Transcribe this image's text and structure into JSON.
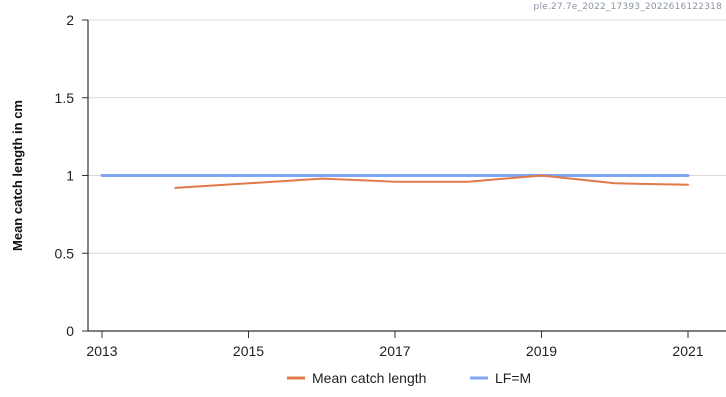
{
  "watermark": "ple.27.7e_2022_17393_2022616122318",
  "chart_data": {
    "type": "line",
    "title": "",
    "xlabel": "",
    "ylabel": "Mean catch length in cm",
    "xlim": [
      2013,
      2021
    ],
    "ylim": [
      0,
      2
    ],
    "x_ticks": [
      2013,
      2015,
      2017,
      2019,
      2021
    ],
    "y_ticks": [
      0,
      0.5,
      1,
      1.5,
      2
    ],
    "y_tick_labels": [
      "0",
      "0.5",
      "1",
      "1.5",
      "2"
    ],
    "grid": "horizontal",
    "legend_position": "bottom",
    "series": [
      {
        "name": "Mean catch length",
        "color": "#e07a4a",
        "x": [
          2014,
          2015,
          2016,
          2017,
          2018,
          2019,
          2020,
          2021
        ],
        "values": [
          0.92,
          0.95,
          0.98,
          0.96,
          0.96,
          1.0,
          0.95,
          0.94
        ]
      },
      {
        "name": "LF=M",
        "color": "#7fa6f2",
        "x": [
          2013,
          2021
        ],
        "values": [
          1.0,
          1.0
        ]
      }
    ]
  }
}
